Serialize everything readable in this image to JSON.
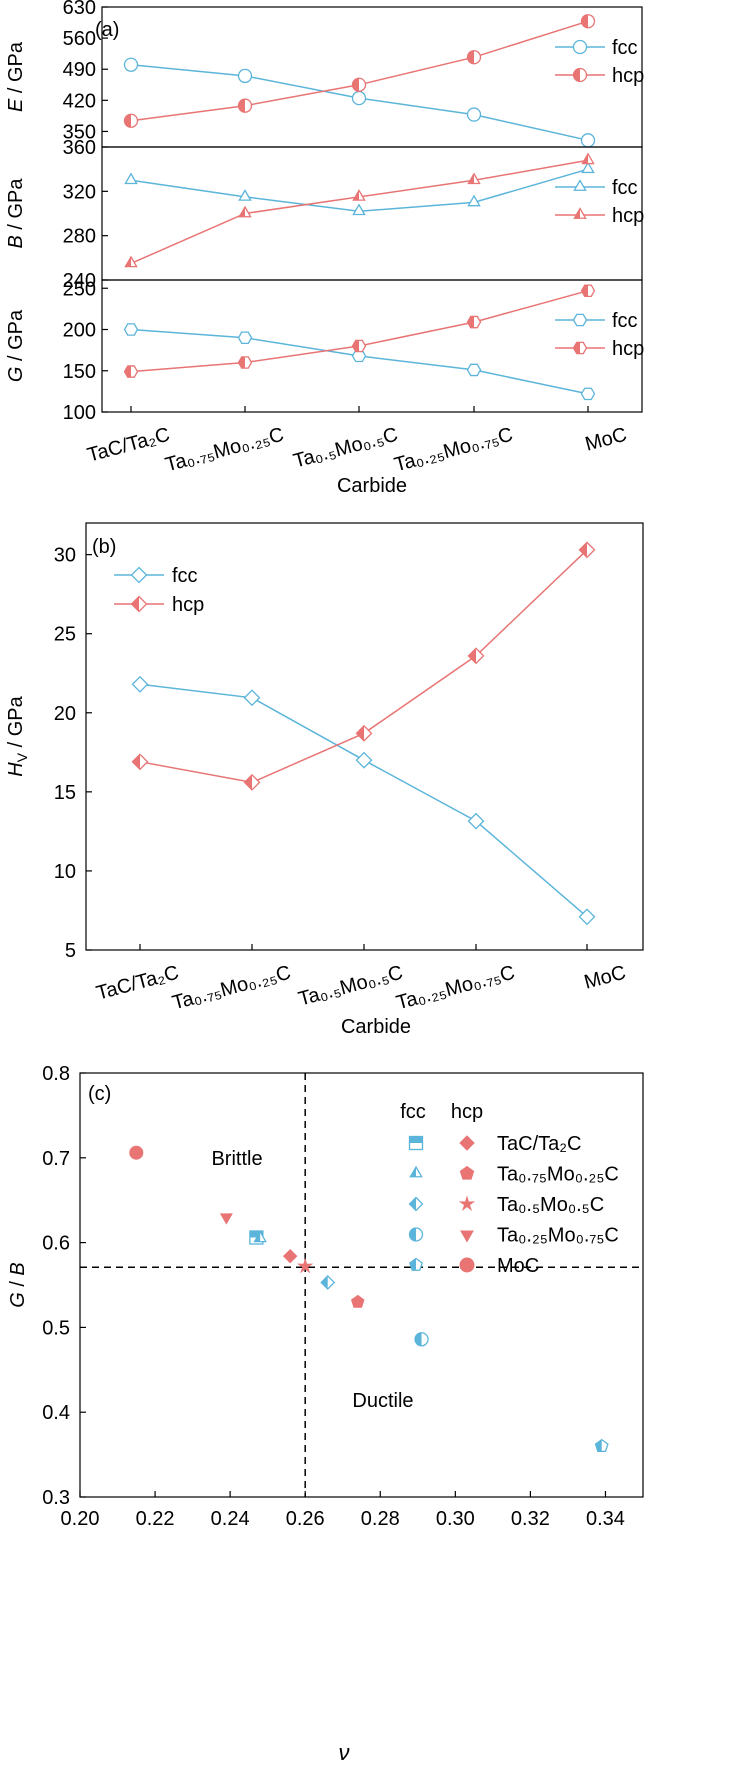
{
  "colors": {
    "fcc": "#5BB5DA",
    "hcp": "#E87474",
    "axis": "#000000"
  },
  "categories": [
    "TaC/Ta₂C",
    "Ta₀.₇₅Mo₀.₂₅C",
    "Ta₀.₅Mo₀.₅C",
    "Ta₀.₂₅Mo₀.₇₅C",
    "MoC"
  ],
  "chart_data": [
    {
      "id": "a",
      "type": "line",
      "panel_label": "(a)",
      "xlabel": "Carbide",
      "categories": [
        "TaC/Ta₂C",
        "Ta₀.₇₅Mo₀.₂₅C",
        "Ta₀.₅Mo₀.₅C",
        "Ta₀.₂₅Mo₀.₇₅C",
        "MoC"
      ],
      "subplots": [
        {
          "ylabel_var": "E",
          "ylabel_unit": " / GPa",
          "ylim": [
            315,
            630
          ],
          "yticks": [
            350,
            420,
            490,
            560,
            630
          ],
          "legend": "right",
          "series": [
            {
              "name": "fcc",
              "marker": "circle",
              "values": [
                500,
                475,
                425,
                388,
                330
              ]
            },
            {
              "name": "hcp",
              "marker": "circle-half",
              "values": [
                374,
                408,
                455,
                517,
                598
              ]
            }
          ]
        },
        {
          "ylabel_var": "B",
          "ylabel_unit": " / GPa",
          "ylim": [
            240,
            360
          ],
          "yticks": [
            240,
            280,
            320,
            360
          ],
          "legend": "right",
          "series": [
            {
              "name": "fcc",
              "marker": "triangle",
              "values": [
                330,
                315,
                302,
                310,
                340
              ]
            },
            {
              "name": "hcp",
              "marker": "triangle-half",
              "values": [
                255,
                300,
                315,
                330,
                348
              ]
            }
          ]
        },
        {
          "ylabel_var": "G",
          "ylabel_unit": " / GPa",
          "ylim": [
            100,
            260
          ],
          "yticks": [
            100,
            150,
            200,
            250
          ],
          "legend": "right",
          "series": [
            {
              "name": "fcc",
              "marker": "hexagon",
              "values": [
                200,
                190,
                168,
                151,
                122
              ]
            },
            {
              "name": "hcp",
              "marker": "hexagon-half",
              "values": [
                149,
                160,
                180,
                209,
                247
              ]
            }
          ]
        }
      ]
    },
    {
      "id": "b",
      "type": "line",
      "panel_label": "(b)",
      "xlabel": "Carbide",
      "ylabel_var": "H",
      "ylabel_sub": "V",
      "ylabel_unit": " / GPa",
      "categories": [
        "TaC/Ta₂C",
        "Ta₀.₇₅Mo₀.₂₅C",
        "Ta₀.₅Mo₀.₅C",
        "Ta₀.₂₅Mo₀.₇₅C",
        "MoC"
      ],
      "ylim": [
        5,
        32
      ],
      "yticks": [
        5,
        10,
        15,
        20,
        25,
        30
      ],
      "legend": "top-left",
      "series": [
        {
          "name": "fcc",
          "marker": "diamond",
          "values": [
            21.8,
            20.95,
            17.0,
            13.15,
            7.1
          ]
        },
        {
          "name": "hcp",
          "marker": "diamond-half",
          "values": [
            16.9,
            15.6,
            18.7,
            23.6,
            30.3
          ]
        }
      ]
    },
    {
      "id": "c",
      "type": "scatter",
      "panel_label": "(c)",
      "xlabel": "ν",
      "ylabel_var": "G",
      "ylabel_unit": " / B",
      "xlim": [
        0.2,
        0.35
      ],
      "ylim": [
        0.3,
        0.8
      ],
      "xticks": [
        "0.20",
        "0.22",
        "0.24",
        "0.26",
        "0.28",
        "0.30",
        "0.32",
        "0.34"
      ],
      "yticks": [
        "0.3",
        "0.4",
        "0.5",
        "0.6",
        "0.7",
        "0.8"
      ],
      "ref_lines": {
        "x": 0.26,
        "y": 0.571
      },
      "annotations": [
        "Brittle",
        "Ductile"
      ],
      "legend_headers": [
        "fcc",
        "hcp"
      ],
      "legend": "top-right",
      "points": [
        {
          "name": "TaC/Ta₂C",
          "fcc": {
            "x": 0.247,
            "y": 0.606,
            "marker": "square-half"
          },
          "hcp": {
            "x": 0.256,
            "y": 0.584,
            "marker": "diamond"
          }
        },
        {
          "name": "Ta₀.₇₅Mo₀.₂₅C",
          "fcc": {
            "x": 0.248,
            "y": 0.605,
            "marker": "triangle-half"
          },
          "hcp": {
            "x": 0.274,
            "y": 0.53,
            "marker": "pentagon"
          }
        },
        {
          "name": "Ta₀.₅Mo₀.₅C",
          "fcc": {
            "x": 0.266,
            "y": 0.553,
            "marker": "diamond-half"
          },
          "hcp": {
            "x": 0.26,
            "y": 0.572,
            "marker": "star"
          }
        },
        {
          "name": "Ta₀.₂₅Mo₀.₇₅C",
          "fcc": {
            "x": 0.291,
            "y": 0.486,
            "marker": "circle-half"
          },
          "hcp": {
            "x": 0.239,
            "y": 0.63,
            "marker": "triangle-down"
          }
        },
        {
          "name": "MoC",
          "fcc": {
            "x": 0.339,
            "y": 0.36,
            "marker": "pentagon-half"
          },
          "hcp": {
            "x": 0.215,
            "y": 0.706,
            "marker": "circle"
          }
        }
      ]
    }
  ]
}
